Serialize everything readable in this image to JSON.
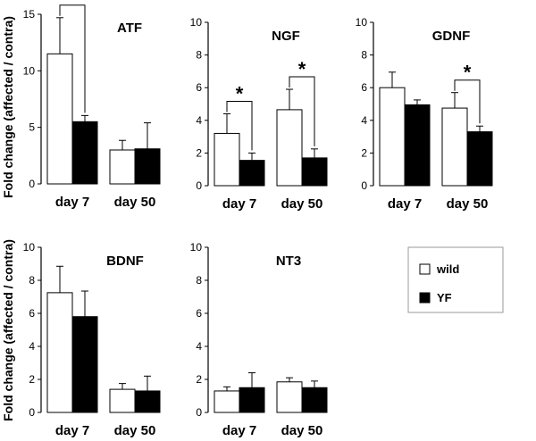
{
  "ylabel": "Fold change (affected / contra)",
  "legend": [
    {
      "name": "wild",
      "color": "#ffffff"
    },
    {
      "name": "YF",
      "color": "#000000"
    }
  ],
  "chart_data": [
    {
      "type": "bar",
      "title": "ATF",
      "categories": [
        "day 7",
        "day 50"
      ],
      "ylim": [
        0,
        15
      ],
      "yticks": [
        0,
        5,
        10,
        15
      ],
      "series": [
        {
          "name": "wild",
          "values": [
            11.5,
            3.0
          ],
          "errors": [
            3.2,
            0.85
          ]
        },
        {
          "name": "YF",
          "values": [
            5.5,
            3.1
          ],
          "errors": [
            0.55,
            2.3
          ]
        }
      ],
      "significance": [
        {
          "category": 0,
          "label": "*"
        }
      ]
    },
    {
      "type": "bar",
      "title": "NGF",
      "categories": [
        "day 7",
        "day 50"
      ],
      "ylim": [
        0,
        10
      ],
      "yticks": [
        0,
        2,
        4,
        6,
        8,
        10
      ],
      "series": [
        {
          "name": "wild",
          "values": [
            3.2,
            4.65
          ],
          "errors": [
            1.2,
            1.25
          ]
        },
        {
          "name": "YF",
          "values": [
            1.55,
            1.7
          ],
          "errors": [
            0.45,
            0.55
          ]
        }
      ],
      "significance": [
        {
          "category": 0,
          "label": "*"
        },
        {
          "category": 1,
          "label": "*"
        }
      ]
    },
    {
      "type": "bar",
      "title": "GDNF",
      "categories": [
        "day 7",
        "day 50"
      ],
      "ylim": [
        0,
        10
      ],
      "yticks": [
        0,
        2,
        4,
        6,
        8,
        10
      ],
      "series": [
        {
          "name": "wild",
          "values": [
            6.0,
            4.75
          ],
          "errors": [
            0.95,
            0.95
          ]
        },
        {
          "name": "YF",
          "values": [
            4.95,
            3.3
          ],
          "errors": [
            0.3,
            0.35
          ]
        }
      ],
      "significance": [
        {
          "category": 1,
          "label": "*"
        }
      ]
    },
    {
      "type": "bar",
      "title": "BDNF",
      "categories": [
        "day 7",
        "day 50"
      ],
      "ylim": [
        0,
        10
      ],
      "yticks": [
        0,
        2,
        4,
        6,
        8,
        10
      ],
      "series": [
        {
          "name": "wild",
          "values": [
            7.25,
            1.4
          ],
          "errors": [
            1.6,
            0.35
          ]
        },
        {
          "name": "YF",
          "values": [
            5.8,
            1.3
          ],
          "errors": [
            1.55,
            0.9
          ]
        }
      ],
      "significance": []
    },
    {
      "type": "bar",
      "title": "NT3",
      "categories": [
        "day 7",
        "day 50"
      ],
      "ylim": [
        0,
        10
      ],
      "yticks": [
        0,
        2,
        4,
        6,
        8,
        10
      ],
      "series": [
        {
          "name": "wild",
          "values": [
            1.3,
            1.85
          ],
          "errors": [
            0.25,
            0.25
          ]
        },
        {
          "name": "YF",
          "values": [
            1.5,
            1.5
          ],
          "errors": [
            0.9,
            0.4
          ]
        }
      ],
      "significance": []
    }
  ]
}
